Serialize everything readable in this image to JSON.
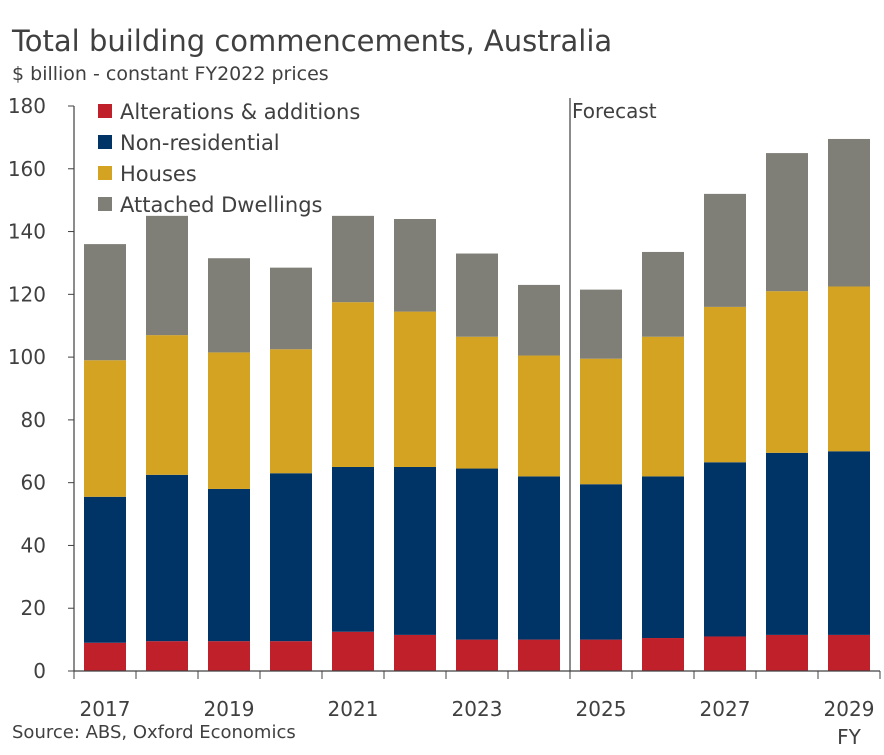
{
  "title": "Total building commencements, Australia",
  "subtitle": "$ billion - constant FY2022 prices",
  "source": "Source: ABS, Oxford Economics",
  "chart_data": {
    "type": "bar",
    "stacked": true,
    "categories": [
      "2017",
      "2018",
      "2019",
      "2020",
      "2021",
      "2022",
      "2023",
      "2024",
      "2025",
      "2026",
      "2027",
      "2028",
      "2029"
    ],
    "x_tick_labels": [
      "2017",
      "",
      "2019",
      "",
      "2021",
      "",
      "2023",
      "",
      "2025",
      "",
      "2027",
      "",
      "2029"
    ],
    "xlabel": "FY",
    "ylabel": "",
    "ylim": [
      0,
      180
    ],
    "yticks": [
      0,
      20,
      40,
      60,
      80,
      100,
      120,
      140,
      160,
      180
    ],
    "series": [
      {
        "name": "Alterations & additions",
        "color": "#c0202a",
        "values": [
          9,
          9.5,
          9.5,
          9.5,
          12.5,
          11.5,
          10,
          10,
          10,
          10.5,
          11,
          11.5,
          11.5
        ]
      },
      {
        "name": "Non-residential",
        "color": "#003366",
        "values": [
          46.5,
          53,
          48.5,
          53.5,
          52.5,
          53.5,
          54.5,
          52,
          49.5,
          51.5,
          55.5,
          58,
          58.5
        ]
      },
      {
        "name": "Houses",
        "color": "#d4a321",
        "values": [
          43.5,
          44.5,
          43.5,
          39.5,
          52.5,
          49.5,
          42,
          38.5,
          40,
          44.5,
          49.5,
          51.5,
          52.5
        ]
      },
      {
        "name": "Attached Dwellings",
        "color": "#7f7f78",
        "values": [
          37,
          38,
          30,
          26,
          27.5,
          29.5,
          26.5,
          22.5,
          22,
          27,
          36,
          44,
          47
        ]
      }
    ],
    "totals": [
      136,
      145,
      131.5,
      128.5,
      145,
      144,
      133,
      123,
      121.5,
      133.5,
      152,
      165,
      169.5
    ],
    "annotations": [
      {
        "text": "Forecast",
        "after_category": "2024"
      }
    ],
    "legend_position": "top-left",
    "grid": false
  }
}
